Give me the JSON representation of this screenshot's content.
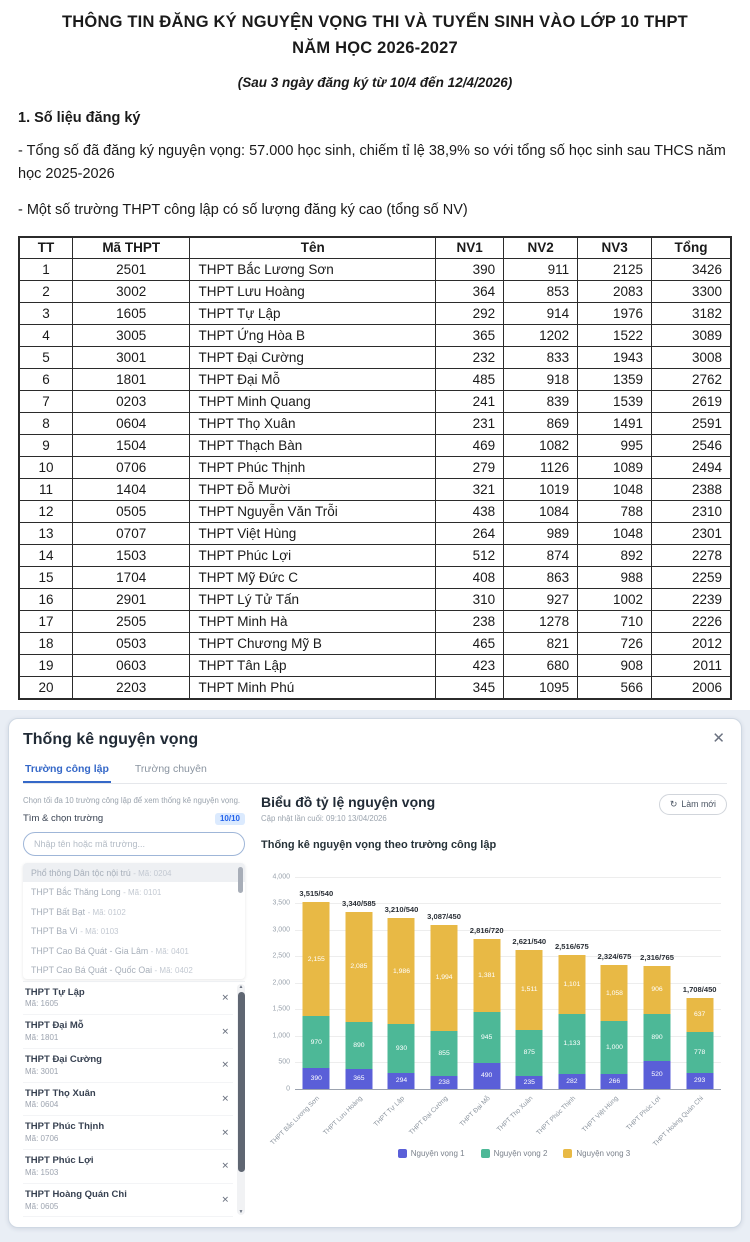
{
  "document": {
    "title_line1": "THÔNG TIN ĐĂNG KÝ NGUYỆN VỌNG THI VÀ TUYỂN SINH VÀO LỚP 10 THPT",
    "title_line2": "NĂM HỌC 2026-2027",
    "subtitle": "(Sau 3 ngày đăng ký từ 10/4 đến 12/4/2026)",
    "section1_heading": "1. Số liệu đăng ký",
    "para1": "- Tổng số đã đăng ký nguyện vọng: 57.000 học sinh, chiếm tỉ lệ 38,9% so với tổng số học sinh sau THCS năm học 2025-2026",
    "para2": "- Một số trường THPT công lập có số lượng đăng ký cao (tổng số NV)",
    "table": {
      "headers": [
        "TT",
        "Mã THPT",
        "Tên",
        "NV1",
        "NV2",
        "NV3",
        "Tổng"
      ],
      "rows": [
        [
          "1",
          "2501",
          "THPT Bắc Lương Sơn",
          "390",
          "911",
          "2125",
          "3426"
        ],
        [
          "2",
          "3002",
          "THPT Lưu Hoàng",
          "364",
          "853",
          "2083",
          "3300"
        ],
        [
          "3",
          "1605",
          "THPT Tự Lập",
          "292",
          "914",
          "1976",
          "3182"
        ],
        [
          "4",
          "3005",
          "THPT Ứng Hòa B",
          "365",
          "1202",
          "1522",
          "3089"
        ],
        [
          "5",
          "3001",
          "THPT Đại Cường",
          "232",
          "833",
          "1943",
          "3008"
        ],
        [
          "6",
          "1801",
          "THPT Đại Mỗ",
          "485",
          "918",
          "1359",
          "2762"
        ],
        [
          "7",
          "0203",
          "THPT Minh Quang",
          "241",
          "839",
          "1539",
          "2619"
        ],
        [
          "8",
          "0604",
          "THPT Thọ Xuân",
          "231",
          "869",
          "1491",
          "2591"
        ],
        [
          "9",
          "1504",
          "THPT Thạch Bàn",
          "469",
          "1082",
          "995",
          "2546"
        ],
        [
          "10",
          "0706",
          "THPT Phúc Thịnh",
          "279",
          "1126",
          "1089",
          "2494"
        ],
        [
          "11",
          "1404",
          "THPT Đỗ Mười",
          "321",
          "1019",
          "1048",
          "2388"
        ],
        [
          "12",
          "0505",
          "THPT Nguyễn Văn Trỗi",
          "438",
          "1084",
          "788",
          "2310"
        ],
        [
          "13",
          "0707",
          "THPT Việt Hùng",
          "264",
          "989",
          "1048",
          "2301"
        ],
        [
          "14",
          "1503",
          "THPT Phúc Lợi",
          "512",
          "874",
          "892",
          "2278"
        ],
        [
          "15",
          "1704",
          "THPT Mỹ Đức C",
          "408",
          "863",
          "988",
          "2259"
        ],
        [
          "16",
          "2901",
          "THPT Lý Tử Tấn",
          "310",
          "927",
          "1002",
          "2239"
        ],
        [
          "17",
          "2505",
          "THPT Minh Hà",
          "238",
          "1278",
          "710",
          "2226"
        ],
        [
          "18",
          "0503",
          "THPT Chương Mỹ B",
          "465",
          "821",
          "726",
          "2012"
        ],
        [
          "19",
          "0603",
          "THPT Tân Lập",
          "423",
          "680",
          "908",
          "2011"
        ],
        [
          "20",
          "2203",
          "THPT Minh Phú",
          "345",
          "1095",
          "566",
          "2006"
        ]
      ]
    }
  },
  "panel": {
    "title": "Thống kê nguyện vọng",
    "close_icon": "✕",
    "tabs": [
      {
        "label": "Trường công lập",
        "active": true
      },
      {
        "label": "Trường chuyên",
        "active": false
      }
    ],
    "helper": "Chọn tối đa 10 trường công lập để xem thống kê nguyện vọng.",
    "search_label": "Tìm & chọn trường",
    "search_count": "10/10",
    "search_placeholder": "Nhập tên hoặc mã trường...",
    "suggestions": [
      {
        "name": "Phổ thông Dân tộc nội trú",
        "code": "Mã: 0204",
        "highlighted": true
      },
      {
        "name": "THPT Bắc Thăng Long",
        "code": "Mã: 0101",
        "highlighted": false
      },
      {
        "name": "THPT Bất Bạt",
        "code": "Mã: 0102",
        "highlighted": false
      },
      {
        "name": "THPT Ba Vì",
        "code": "Mã: 0103",
        "highlighted": false
      },
      {
        "name": "THPT Cao Bá Quát - Gia Lâm",
        "code": "Mã: 0401",
        "highlighted": false
      },
      {
        "name": "THPT Cao Bá Quát - Quốc Oai",
        "code": "Mã: 0402",
        "highlighted": false
      }
    ],
    "selected": [
      {
        "name": "THPT Tự Lập",
        "code": "Mã: 1605"
      },
      {
        "name": "THPT Đại Mỗ",
        "code": "Mã: 1801"
      },
      {
        "name": "THPT Đại Cường",
        "code": "Mã: 3001"
      },
      {
        "name": "THPT Thọ Xuân",
        "code": "Mã: 0604"
      },
      {
        "name": "THPT Phúc Thịnh",
        "code": "Mã: 0706"
      },
      {
        "name": "THPT Phúc Lợi",
        "code": "Mã: 1503"
      },
      {
        "name": "THPT Hoàng Quán Chi",
        "code": "Mã: 0605"
      }
    ],
    "chart_header": {
      "title": "Biểu đồ tỷ lệ nguyện vọng",
      "updated": "Cập nhật lần cuối: 09:10 13/04/2026",
      "refresh_label": "Làm mới",
      "refresh_icon": "↻"
    }
  },
  "chart_data": {
    "type": "bar",
    "stacked": true,
    "title": "Thống kê nguyện vọng theo trường công lập",
    "categories": [
      "THPT Bắc Lương Sơn",
      "THPT Lưu Hoàng",
      "THPT Tự Lập",
      "THPT Đại Cường",
      "THPT Đại Mỗ",
      "THPT Thọ Xuân",
      "THPT Phúc Thịnh",
      "THPT Việt Hùng",
      "THPT Phúc Lợi",
      "THPT Hoàng Quán Chi"
    ],
    "series": [
      {
        "name": "Nguyện vọng 1",
        "color": "#5a5fd8",
        "values": [
          390,
          365,
          294,
          238,
          490,
          235,
          282,
          266,
          520,
          293
        ]
      },
      {
        "name": "Nguyện vọng 2",
        "color": "#4db897",
        "values": [
          970,
          890,
          930,
          855,
          945,
          875,
          1133,
          1000,
          890,
          778
        ]
      },
      {
        "name": "Nguyện vọng 3",
        "color": "#e8b945",
        "values": [
          2155,
          2085,
          1986,
          1994,
          1381,
          1511,
          1101,
          1058,
          906,
          637
        ]
      }
    ],
    "totals": [
      3515,
      3340,
      3210,
      3087,
      2816,
      2621,
      2516,
      2324,
      2316,
      1708
    ],
    "quotas": [
      540,
      585,
      540,
      450,
      720,
      540,
      675,
      675,
      765,
      450
    ],
    "bar_total_labels": [
      "3,515/540",
      "3,340/585",
      "3,210/540",
      "3,087/450",
      "2,816/720",
      "2,621/540",
      "2,516/675",
      "2,324/675",
      "2,316/765",
      "1,708/450"
    ],
    "ylim": [
      0,
      4000
    ],
    "ytick_step": 500,
    "grid": true,
    "legend_position": "bottom",
    "xlabel": "",
    "ylabel": ""
  }
}
